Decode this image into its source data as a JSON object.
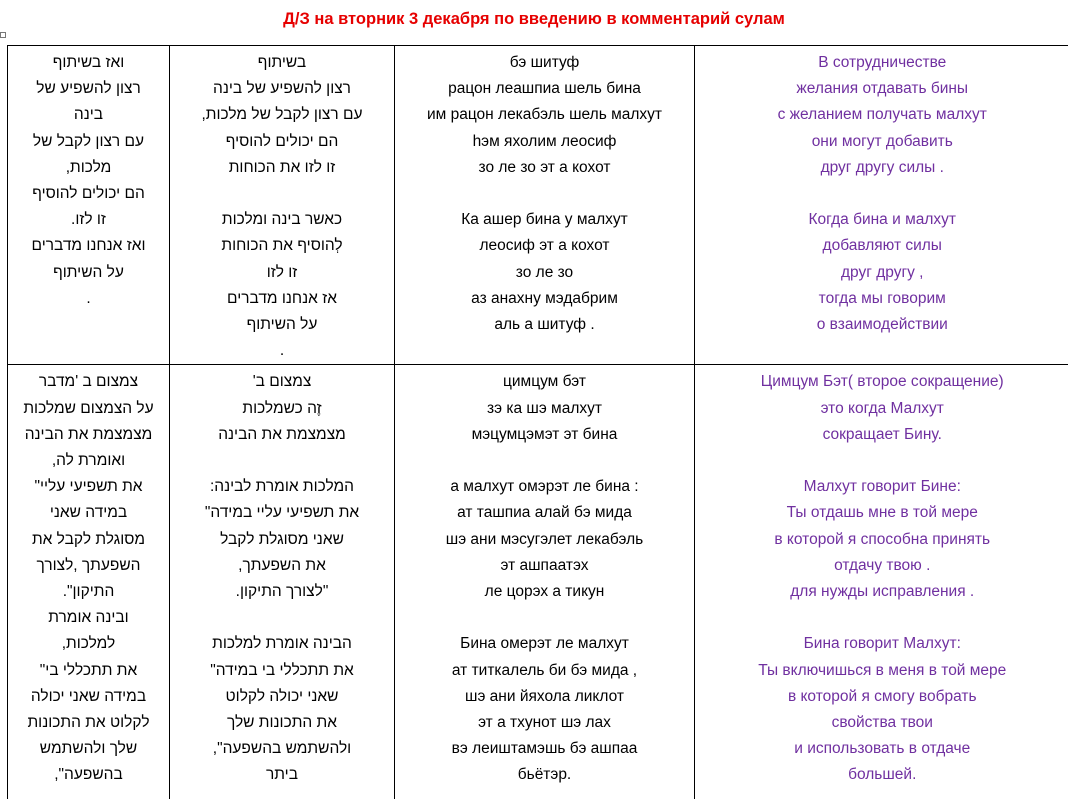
{
  "title": "Д/З на вторник 3 декабря по введению в комментарий сулам",
  "rows": [
    {
      "hebrew_full": [
        "ואז בשיתוף",
        "רצון להשפיע של",
        "בינה",
        "עם רצון לקבל של",
        "מלכות,",
        "הם יכולים להוסיף",
        "זו לזו.",
        "ואז אנחנו מדברים",
        "על השיתוף",
        "."
      ],
      "hebrew": [
        "בשיתוף",
        "רצון להשפיע של בינה",
        "עם רצון לקבל של מלכות,",
        "הם יכולים להוסיף",
        "זו לזו את הכוחות",
        "",
        "כאשר בינה ומלכות",
        "לְהוסיף את הכוחות",
        "זו לזו",
        "אז אנחנו מדברים",
        "על השיתוף",
        "."
      ],
      "translit": [
        "бэ шитуф",
        "рацон леашпиа шель бина",
        "им рацон лекабэль шель малхут",
        "hэм яхолим леосиф",
        "зо ле зо эт а кохот",
        "",
        "Ка ашер бина у малхут",
        "леосиф эт а кохот",
        "зо ле зо",
        "аз анахну мэдабрим",
        "аль а шитуф ."
      ],
      "russian": [
        "В сотрудничестве",
        "желания отдавать бины",
        "с желанием получать малхут",
        "они могут добавить",
        "друг другу силы .",
        "",
        "Когда бина и малхут",
        "добавляют силы",
        "друг другу ,",
        "тогда мы говорим",
        "о взаимодействии"
      ]
    },
    {
      "hebrew_full": [
        "צמצום ב 'מדבר",
        "על הצמצום שמלכות",
        "מצמצמת את הבינה",
        "ואומרת לה,",
        "את תשפיעי עליי\"",
        "במידה שאני",
        "מסוגלת לקבל את",
        "השפעתך ,לצורך",
        "התיקון\".",
        "ובינה אומרת",
        "למלכות,",
        "את תתכללי בי\"",
        "במידה שאני יכולה",
        "לקלוט את התכונות",
        "שלך ולהשתמש",
        "בהשפעה\","
      ],
      "hebrew": [
        "צמצום ב'",
        "זֶה כשמלכות",
        "מצמצמת את הבינה",
        "",
        "המלכות אומרת לבינה:",
        "את תשפיעי עליי במידה\"",
        "שאני מסוגלת לקבל",
        "את השפעתך,",
        "\"לצורך התיקון.",
        "",
        "הבינה אומרת למלכות",
        "את תתכללי בי במידה\"",
        "שאני יכולה לקלוט",
        "את התכונות שלך",
        "ולהשתמש בהשפעה\",",
        "ביתר"
      ],
      "translit": [
        "цимцум бэт",
        "зэ ка шэ малхут",
        "мэцумцэмэт эт бина",
        "",
        "а малхут омэрэт ле бина :",
        "ат ташпиа алай бэ мида",
        "шэ ани мэсугэлет лекабэль",
        "эт ашпаатэх",
        "ле цорэх а тикун",
        "",
        "Бина омерэт ле малхут",
        "ат титкалель би бэ мида ,",
        "шэ ани йяхола ликлот",
        "эт а тхунот шэ лах",
        "вэ леиштамэшь бэ ашпаа",
        "бьётэр."
      ],
      "russian": [
        "Цимцум Бэт( второе сокращение)",
        "это когда Малхут",
        "сокращает Бину.",
        "",
        "Малхут говорит Бине:",
        "Ты отдашь мне в той мере",
        "в которой я способна принять",
        "отдачу твою .",
        "для нужды исправления .",
        "",
        "Бина говорит Малхут:",
        "Ты включишься в меня в той мере",
        "в которой я смогу вобрать",
        "свойства твои",
        "и использовать в отдаче",
        "большей."
      ]
    }
  ]
}
